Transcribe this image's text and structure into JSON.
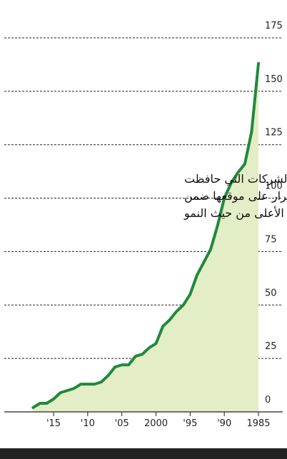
{
  "chart_data": {
    "type": "area",
    "annotation_lines": [
      "عدد الشركات التي حافظت",
      "باستمرار على موقعها ضمن",
      "الربع الأعلى من حيث النمو"
    ],
    "x_tick_labels": [
      "1985",
      "'90",
      "'95",
      "2000",
      "'05",
      "'10",
      "'15"
    ],
    "x_tick_years": [
      1985,
      1990,
      1995,
      2000,
      2005,
      2010,
      2015
    ],
    "y_tick_labels": [
      "0",
      "25",
      "50",
      "75",
      "100",
      "125",
      "150",
      "175"
    ],
    "y_tick_values": [
      0,
      25,
      50,
      75,
      100,
      125,
      150,
      175
    ],
    "xlim": [
      2019,
      1985
    ],
    "ylim": [
      0,
      175
    ],
    "grid": true,
    "series": [
      {
        "x": [
          2018,
          2017,
          2016,
          2015,
          2014,
          2013,
          2012,
          2011,
          2010,
          2009,
          2008,
          2007,
          2006,
          2005,
          2004,
          2003,
          2002,
          2001,
          2000,
          1999,
          1998,
          1997,
          1996,
          1995,
          1994,
          1993,
          1992,
          1991,
          1990,
          1989,
          1988,
          1987,
          1986,
          1985
        ],
        "y": [
          2,
          4,
          4,
          6,
          9,
          10,
          11,
          13,
          13,
          13,
          14,
          17,
          21,
          22,
          22,
          26,
          27,
          30,
          32,
          40,
          43,
          47,
          50,
          55,
          64,
          70,
          76,
          87,
          100,
          107,
          112,
          116,
          131,
          163
        ],
        "color": "#1f8a3a",
        "fill": "#e3edc6"
      }
    ]
  },
  "footer_bar_color": "#222222"
}
